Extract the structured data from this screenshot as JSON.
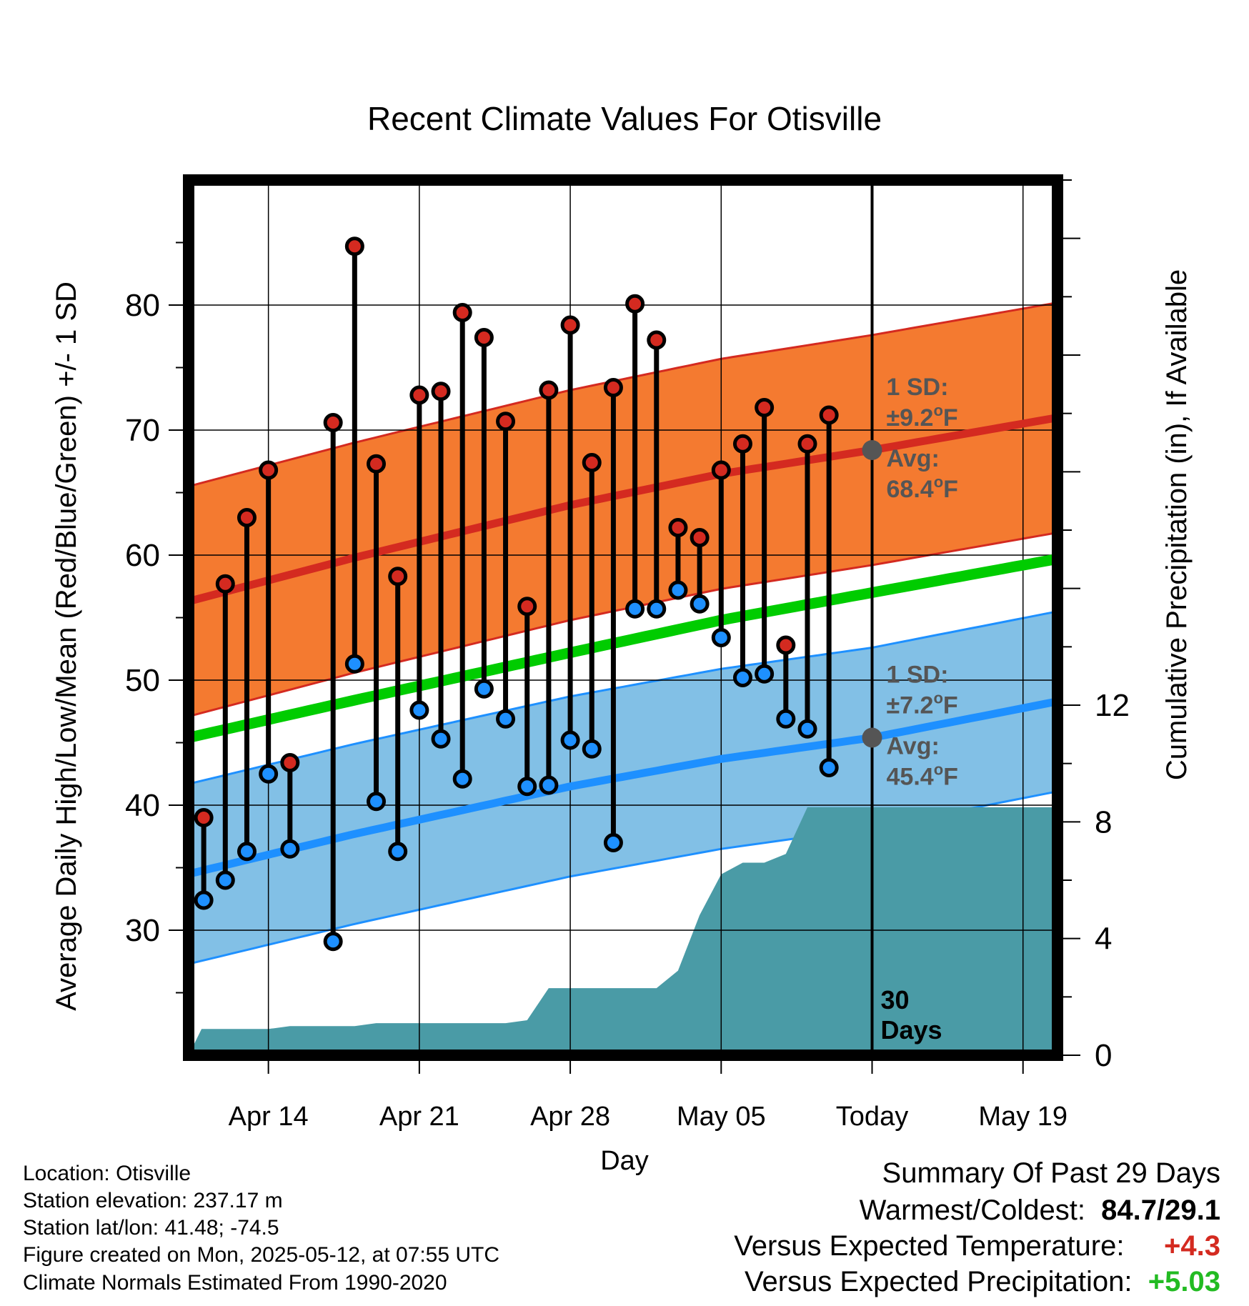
{
  "chart_data": {
    "type": "line",
    "title": "Recent Climate Values For Otisville",
    "xlabel": "Day",
    "ylabel": "Average Daily High/Low/Mean (Red/Blue/Green) +/- 1 SD",
    "y2label": "Cumulative Precipitation (in), If Available",
    "ylim": [
      20,
      90
    ],
    "y2lim": [
      0,
      30
    ],
    "yticks": [
      30,
      40,
      50,
      60,
      70,
      80
    ],
    "y2ticks": [
      0,
      4,
      8,
      12
    ],
    "xticks": [
      {
        "day": 14,
        "label": "Apr 14"
      },
      {
        "day": 21,
        "label": "Apr 21"
      },
      {
        "day": 28,
        "label": "Apr 28"
      },
      {
        "day": 35,
        "label": "May 05"
      },
      {
        "day": 42,
        "label": "Today"
      },
      {
        "day": 49,
        "label": "May 19"
      }
    ],
    "xlim": [
      10.3,
      50.6
    ],
    "today_day": 42,
    "grid": true,
    "colors": {
      "high": "#d42a20",
      "low": "#1e90ff",
      "mean": "#00cc00",
      "high_band": "#f47a30",
      "low_band": "#82c0e6",
      "precip": "#4a9ba6",
      "today_marker": "#555555"
    },
    "normals": {
      "high_mean": [
        [
          10.3,
          56.3
        ],
        [
          18,
          59.8
        ],
        [
          28,
          64.0
        ],
        [
          35,
          66.5
        ],
        [
          42,
          68.4
        ],
        [
          50.6,
          71.0
        ]
      ],
      "high_sd": 9.2,
      "low_mean": [
        [
          10.3,
          34.5
        ],
        [
          18,
          37.7
        ],
        [
          28,
          41.5
        ],
        [
          35,
          43.7
        ],
        [
          42,
          45.4
        ],
        [
          50.6,
          48.3
        ]
      ],
      "low_sd": 7.2,
      "mean": [
        [
          10.3,
          45.4
        ],
        [
          18,
          48.4
        ],
        [
          28,
          52.2
        ],
        [
          35,
          54.8
        ],
        [
          42,
          57.0
        ],
        [
          50.6,
          59.7
        ]
      ]
    },
    "days": [
      11,
      12,
      13,
      14,
      15,
      16,
      17,
      18,
      19,
      20,
      21,
      22,
      23,
      24,
      25,
      26,
      27,
      28,
      29,
      30,
      31,
      32,
      33,
      34,
      35,
      36,
      37,
      38,
      39,
      40,
      41
    ],
    "highs": [
      39.0,
      57.7,
      63.0,
      66.8,
      43.4,
      null,
      70.6,
      84.7,
      67.3,
      58.3,
      72.8,
      73.1,
      79.4,
      77.4,
      70.7,
      55.9,
      73.2,
      78.4,
      67.4,
      73.4,
      80.1,
      77.2,
      62.2,
      61.4,
      66.8,
      68.9,
      71.8,
      52.8,
      68.9,
      71.2,
      null
    ],
    "lows": [
      32.4,
      34.0,
      36.3,
      42.5,
      36.5,
      null,
      29.1,
      51.3,
      40.3,
      36.3,
      47.6,
      45.3,
      42.1,
      49.3,
      46.9,
      41.5,
      41.6,
      45.2,
      44.5,
      37.0,
      55.7,
      55.7,
      57.2,
      56.1,
      53.4,
      50.2,
      50.5,
      46.9,
      46.1,
      43.0,
      null
    ],
    "precip_cumulative": [
      [
        10.3,
        0.0
      ],
      [
        10.9,
        0.9
      ],
      [
        14,
        0.9
      ],
      [
        15,
        1.0
      ],
      [
        18,
        1.0
      ],
      [
        19,
        1.1
      ],
      [
        25,
        1.1
      ],
      [
        26,
        1.2
      ],
      [
        27,
        2.3
      ],
      [
        32,
        2.3
      ],
      [
        33,
        2.9
      ],
      [
        34,
        4.8
      ],
      [
        35,
        6.2
      ],
      [
        36,
        6.6
      ],
      [
        37,
        6.6
      ],
      [
        38,
        6.9
      ],
      [
        39,
        8.5
      ],
      [
        50.6,
        8.5
      ]
    ],
    "annotations": {
      "high_sd_label": "1 SD:",
      "high_sd_value": "±9.2",
      "high_avg_label": "Avg:",
      "high_avg_value": "68.4",
      "low_sd_label": "1 SD:",
      "low_sd_value": "±7.2",
      "low_avg_label": "Avg:",
      "low_avg_value": "45.4",
      "deg_sup": "o",
      "unit": "F",
      "days_count": "30",
      "days_word": "Days"
    }
  },
  "info": {
    "location": "Location: Otisville",
    "elevation": "Station elevation: 237.17 m",
    "latlon": "Station lat/lon: 41.48; -74.5",
    "created": "Figure created on Mon, 2025-05-12, at 07:55 UTC",
    "normals": "Climate Normals Estimated From 1990-2020"
  },
  "summary": {
    "title": "Summary Of Past 29 Days",
    "warm_cold_label": "Warmest/Coldest:",
    "warm_cold_value": "84.7/29.1",
    "temp_label": "Versus Expected Temperature:",
    "temp_value": "+4.3",
    "temp_color": "#d42a20",
    "precip_label": "Versus Expected Precipitation:",
    "precip_value": "+5.03",
    "precip_color": "#22bb22"
  }
}
